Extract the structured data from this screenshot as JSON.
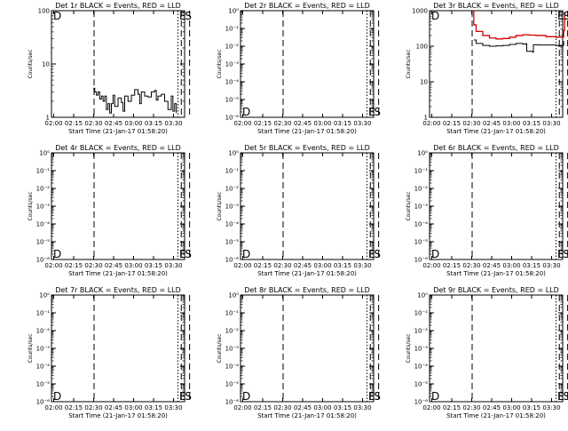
{
  "page": {
    "background": "#ffffff",
    "line_color": "#000000",
    "accent_color": "#d40000"
  },
  "chart_data": [
    {
      "type": "line",
      "title": "Det 1r BLACK = Events, RED = LLD",
      "xlabel": "Start Time (21-Jan-17 01:58:20)",
      "ylabel": "Counts/sec",
      "x_ticks": [
        "02:00",
        "02:15",
        "02:30",
        "02:45",
        "03:00",
        "03:15",
        "03:30"
      ],
      "x_range_minutes": [
        0,
        40
      ],
      "y_scale": "log",
      "y_ticks": [
        "1",
        "10",
        "100"
      ],
      "y_range": [
        1,
        100
      ],
      "vlines": {
        "dashed": [
          12.8,
          39,
          41.5
        ],
        "dotted": [
          38
        ]
      },
      "markers": [
        {
          "text": "D",
          "pos": "top-left"
        },
        {
          "text": "E",
          "pos": "upper-right-1"
        },
        {
          "text": "S",
          "pos": "upper-right-2"
        }
      ],
      "series": [
        {
          "color": "#000000",
          "points": [
            [
              12.5,
              3.5
            ],
            [
              13,
              3
            ],
            [
              13.5,
              2.6
            ],
            [
              14,
              3
            ],
            [
              14.5,
              2.2
            ],
            [
              15,
              2.5
            ],
            [
              15.5,
              2
            ],
            [
              16,
              2.5
            ],
            [
              16.5,
              1.4
            ],
            [
              17,
              1.8
            ],
            [
              17.5,
              1.2
            ],
            [
              18,
              1.8
            ],
            [
              18.5,
              2.6
            ],
            [
              19,
              1.6
            ],
            [
              20,
              2.3
            ],
            [
              21,
              1.9
            ],
            [
              21.5,
              1.3
            ],
            [
              22,
              2.5
            ],
            [
              23,
              2
            ],
            [
              24,
              2.6
            ],
            [
              25,
              3.3
            ],
            [
              26,
              2.7
            ],
            [
              26.5,
              1.8
            ],
            [
              27,
              3
            ],
            [
              28,
              2.5
            ],
            [
              29,
              2.4
            ],
            [
              30,
              3
            ],
            [
              31,
              3.2
            ],
            [
              31.5,
              2.1
            ],
            [
              32,
              2.5
            ],
            [
              33,
              2.7
            ],
            [
              34,
              2
            ],
            [
              35,
              1.4
            ],
            [
              36,
              2.5
            ],
            [
              36.5,
              1.3
            ],
            [
              37,
              1.8
            ],
            [
              37.5,
              1.2
            ]
          ]
        }
      ]
    },
    {
      "type": "line",
      "title": "Det 2r BLACK = Events, RED = LLD",
      "xlabel": "Start Time (21-Jan-17 01:58:20)",
      "ylabel": "Counts/sec",
      "x_ticks": [
        "02:00",
        "02:15",
        "02:30",
        "02:45",
        "03:00",
        "03:15",
        "03:30"
      ],
      "x_range_minutes": [
        0,
        40
      ],
      "y_scale": "log",
      "y_ticks": [
        "10⁰",
        "10⁻¹",
        "10⁻²",
        "10⁻³",
        "10⁻⁴",
        "10⁻⁵",
        "10⁻⁶"
      ],
      "y_range": [
        1e-06,
        1
      ],
      "vlines": {
        "dashed": [
          12.8,
          39,
          41.5
        ],
        "dotted": [
          38
        ]
      },
      "markers": [
        {
          "text": "D",
          "pos": "bottom-left"
        },
        {
          "text": "E",
          "pos": "lower-right-1"
        },
        {
          "text": "S",
          "pos": "lower-right-2"
        }
      ],
      "series": []
    },
    {
      "type": "line",
      "title": "Det 3r BLACK = Events, RED = LLD",
      "xlabel": "Start Time (21-Jan-17 01:58:20)",
      "ylabel": "Counts/sec",
      "x_ticks": [
        "02:00",
        "02:15",
        "02:30",
        "02:45",
        "03:00",
        "03:15",
        "03:30"
      ],
      "x_range_minutes": [
        0,
        40
      ],
      "y_scale": "log",
      "y_ticks": [
        "1",
        "10",
        "100",
        "1000"
      ],
      "y_range": [
        1,
        1000
      ],
      "vlines": {
        "dashed": [
          12.8,
          39,
          41.5
        ],
        "dotted": [
          38
        ]
      },
      "markers": [
        {
          "text": "D",
          "pos": "top-left"
        },
        {
          "text": "E",
          "pos": "upper-right-1"
        },
        {
          "text": "S",
          "pos": "upper-right-2"
        }
      ],
      "series": [
        {
          "color": "#d40000",
          "points": [
            [
              12.9,
              1000
            ],
            [
              13.3,
              400
            ],
            [
              14,
              260
            ],
            [
              16,
              200
            ],
            [
              18,
              170
            ],
            [
              20,
              160
            ],
            [
              22,
              165
            ],
            [
              24,
              180
            ],
            [
              26,
              200
            ],
            [
              28,
              210
            ],
            [
              30,
              205
            ],
            [
              32,
              200
            ],
            [
              35,
              185
            ],
            [
              38,
              180
            ],
            [
              40,
              180
            ],
            [
              40.3,
              280
            ],
            [
              40.6,
              900
            ]
          ]
        },
        {
          "color": "#000000",
          "points": [
            [
              13.3,
              150
            ],
            [
              14,
              120
            ],
            [
              16,
              105
            ],
            [
              18,
              100
            ],
            [
              20,
              102
            ],
            [
              22,
              105
            ],
            [
              24,
              112
            ],
            [
              26,
              120
            ],
            [
              28,
              115
            ],
            [
              29,
              118
            ],
            [
              29.2,
              72
            ],
            [
              31,
              68
            ],
            [
              31.2,
              110
            ],
            [
              33,
              108
            ],
            [
              35,
              108
            ],
            [
              38,
              105
            ],
            [
              40,
              105
            ],
            [
              40.3,
              140
            ]
          ]
        }
      ]
    },
    {
      "type": "line",
      "title": "Det 4r BLACK = Events, RED = LLD",
      "xlabel": "Start Time (21-Jan-17 01:58:20)",
      "ylabel": "Counts/sec",
      "x_ticks": [
        "02:00",
        "02:15",
        "02:30",
        "02:45",
        "03:00",
        "03:15",
        "03:30"
      ],
      "x_range_minutes": [
        0,
        40
      ],
      "y_scale": "log",
      "y_ticks": [
        "10⁰",
        "10⁻¹",
        "10⁻²",
        "10⁻³",
        "10⁻⁴",
        "10⁻⁵",
        "10⁻⁶"
      ],
      "y_range": [
        1e-06,
        1
      ],
      "vlines": {
        "dashed": [
          12.8,
          39,
          41.5
        ],
        "dotted": [
          38
        ]
      },
      "markers": [
        {
          "text": "D",
          "pos": "bottom-left"
        },
        {
          "text": "E",
          "pos": "lower-right-1"
        },
        {
          "text": "S",
          "pos": "lower-right-2"
        }
      ],
      "series": []
    },
    {
      "type": "line",
      "title": "Det 5r BLACK = Events, RED = LLD",
      "xlabel": "Start Time (21-Jan-17 01:58:20)",
      "ylabel": "Counts/sec",
      "x_ticks": [
        "02:00",
        "02:15",
        "02:30",
        "02:45",
        "03:00",
        "03:15",
        "03:30"
      ],
      "x_range_minutes": [
        0,
        40
      ],
      "y_scale": "log",
      "y_ticks": [
        "10⁰",
        "10⁻¹",
        "10⁻²",
        "10⁻³",
        "10⁻⁴",
        "10⁻⁵",
        "10⁻⁶"
      ],
      "y_range": [
        1e-06,
        1
      ],
      "vlines": {
        "dashed": [
          12.8,
          39,
          41.5
        ],
        "dotted": [
          38
        ]
      },
      "markers": [
        {
          "text": "D",
          "pos": "bottom-left"
        },
        {
          "text": "E",
          "pos": "lower-right-1"
        },
        {
          "text": "S",
          "pos": "lower-right-2"
        }
      ],
      "series": []
    },
    {
      "type": "line",
      "title": "Det 6r BLACK = Events, RED = LLD",
      "xlabel": "Start Time (21-Jan-17 01:58:20)",
      "ylabel": "Counts/sec",
      "x_ticks": [
        "02:00",
        "02:15",
        "02:30",
        "02:45",
        "03:00",
        "03:15",
        "03:30"
      ],
      "x_range_minutes": [
        0,
        40
      ],
      "y_scale": "log",
      "y_ticks": [
        "10⁰",
        "10⁻¹",
        "10⁻²",
        "10⁻³",
        "10⁻⁴",
        "10⁻⁵",
        "10⁻⁶"
      ],
      "y_range": [
        1e-06,
        1
      ],
      "vlines": {
        "dashed": [
          12.8,
          39,
          41.5
        ],
        "dotted": [
          38
        ]
      },
      "markers": [
        {
          "text": "D",
          "pos": "bottom-left"
        },
        {
          "text": "E",
          "pos": "lower-right-1"
        },
        {
          "text": "S",
          "pos": "lower-right-2"
        }
      ],
      "series": []
    },
    {
      "type": "line",
      "title": "Det 7r BLACK = Events, RED = LLD",
      "xlabel": "Start Time (21-Jan-17 01:58:20)",
      "ylabel": "Counts/sec",
      "x_ticks": [
        "02:00",
        "02:15",
        "02:30",
        "02:45",
        "03:00",
        "03:15",
        "03:30"
      ],
      "x_range_minutes": [
        0,
        40
      ],
      "y_scale": "log",
      "y_ticks": [
        "10⁰",
        "10⁻¹",
        "10⁻²",
        "10⁻³",
        "10⁻⁴",
        "10⁻⁵",
        "10⁻⁶"
      ],
      "y_range": [
        1e-06,
        1
      ],
      "vlines": {
        "dashed": [
          12.8,
          39,
          41.5
        ],
        "dotted": [
          38
        ]
      },
      "markers": [
        {
          "text": "D",
          "pos": "bottom-left"
        },
        {
          "text": "E",
          "pos": "lower-right-1"
        },
        {
          "text": "S",
          "pos": "lower-right-2"
        }
      ],
      "series": []
    },
    {
      "type": "line",
      "title": "Det 8r BLACK = Events, RED = LLD",
      "xlabel": "Start Time (21-Jan-17 01:58:20)",
      "ylabel": "Counts/sec",
      "x_ticks": [
        "02:00",
        "02:15",
        "02:30",
        "02:45",
        "03:00",
        "03:15",
        "03:30"
      ],
      "x_range_minutes": [
        0,
        40
      ],
      "y_scale": "log",
      "y_ticks": [
        "10⁰",
        "10⁻¹",
        "10⁻²",
        "10⁻³",
        "10⁻⁴",
        "10⁻⁵",
        "10⁻⁶"
      ],
      "y_range": [
        1e-06,
        1
      ],
      "vlines": {
        "dashed": [
          12.8,
          39,
          41.5
        ],
        "dotted": [
          38
        ]
      },
      "markers": [
        {
          "text": "D",
          "pos": "bottom-left"
        },
        {
          "text": "E",
          "pos": "lower-right-1"
        },
        {
          "text": "S",
          "pos": "lower-right-2"
        }
      ],
      "series": []
    },
    {
      "type": "line",
      "title": "Det 9r BLACK = Events, RED = LLD",
      "xlabel": "Start Time (21-Jan-17 01:58:20)",
      "ylabel": "Counts/sec",
      "x_ticks": [
        "02:00",
        "02:15",
        "02:30",
        "02:45",
        "03:00",
        "03:15",
        "03:30"
      ],
      "x_range_minutes": [
        0,
        40
      ],
      "y_scale": "log",
      "y_ticks": [
        "10⁰",
        "10⁻¹",
        "10⁻²",
        "10⁻³",
        "10⁻⁴",
        "10⁻⁵",
        "10⁻⁶"
      ],
      "y_range": [
        1e-06,
        1
      ],
      "vlines": {
        "dashed": [
          12.8,
          39,
          41.5
        ],
        "dotted": [
          38
        ]
      },
      "markers": [
        {
          "text": "D",
          "pos": "bottom-left"
        },
        {
          "text": "E",
          "pos": "lower-right-1"
        },
        {
          "text": "S",
          "pos": "lower-right-2"
        }
      ],
      "series": []
    }
  ]
}
